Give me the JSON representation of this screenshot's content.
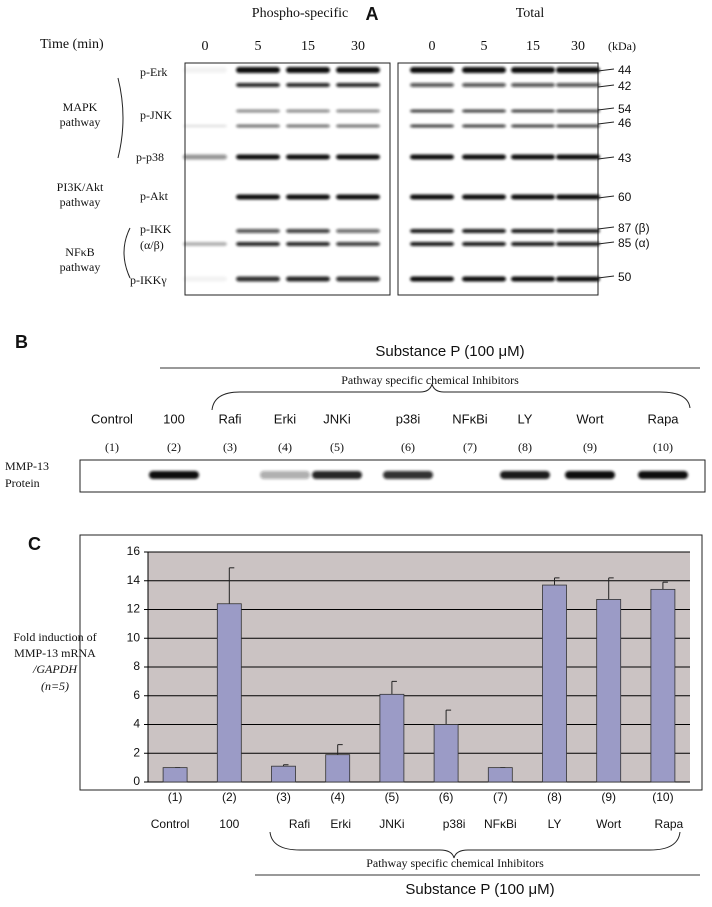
{
  "panel_a": {
    "label": "A",
    "headers": [
      "Phospho-specific",
      "Total"
    ],
    "time_label": "Time (min)",
    "phospho_times": [
      "0",
      "5",
      "15",
      "30"
    ],
    "total_times": [
      "0",
      "5",
      "15",
      "30"
    ],
    "kda_label": "(kDa)",
    "pathways": [
      [
        "MAPK",
        "pathway"
      ],
      [
        "PI3K/Akt",
        "pathway"
      ],
      [
        "NFκB",
        "pathway"
      ]
    ],
    "proteins": [
      "p-Erk",
      "p-JNK",
      "p-p38",
      "p-Akt",
      "p-IKK",
      "(α/β)",
      "p-IKKγ"
    ],
    "markers": [
      "44",
      "42",
      "54",
      "46",
      "43",
      "60",
      "87 (β)",
      "85 (α)",
      "50"
    ]
  },
  "panel_b": {
    "label": "B",
    "title": "Substance P (100 μM)",
    "subtitle": "Pathway specific chemical Inhibitors",
    "lanes": [
      "Control",
      "100",
      "Rafi",
      "Erki",
      "JNKi",
      "p38i",
      "NFκBi",
      "LY",
      "Wort",
      "Rapa"
    ],
    "lane_numbers": [
      "(1)",
      "(2)",
      "(3)",
      "(4)",
      "(5)",
      "(6)",
      "(7)",
      "(8)",
      "(9)",
      "(10)"
    ],
    "row_label": [
      "MMP-13",
      "Protein"
    ]
  },
  "chart_data": {
    "type": "bar",
    "panel_label": "C",
    "categories": [
      "Control",
      "100",
      "Rafi",
      "Erki",
      "JNKi",
      "p38i",
      "NFκBi",
      "LY",
      "Wort",
      "Rapa"
    ],
    "category_numbers": [
      "(1)",
      "(2)",
      "(3)",
      "(4)",
      "(5)",
      "(6)",
      "(7)",
      "(8)",
      "(9)",
      "(10)"
    ],
    "values": [
      1,
      12.4,
      1.1,
      1.9,
      6.1,
      4,
      1,
      13.7,
      12.7,
      13.4
    ],
    "errors": [
      0,
      2.5,
      0.1,
      0.7,
      0.9,
      1,
      0,
      0.5,
      1.5,
      0.5
    ],
    "color": "#9b9bc6",
    "background": "#cbc3c3",
    "ylim": [
      0,
      16
    ],
    "yticks": [
      0,
      2,
      4,
      6,
      8,
      10,
      12,
      14,
      16
    ],
    "grid": true,
    "y_label": [
      "Fold induction of",
      "MMP-13 mRNA",
      "/GAPDH",
      "(n=5)"
    ],
    "bracket_label": "Pathway specific chemical Inhibitors",
    "title": "Substance P (100 μM)"
  }
}
